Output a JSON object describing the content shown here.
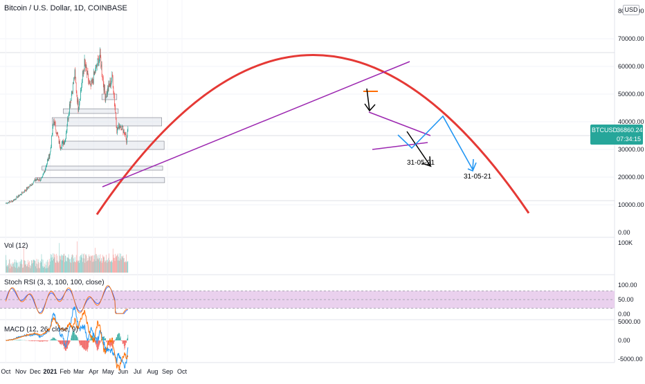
{
  "header": {
    "title": "Bitcoin / U.S. Dollar, 1D, COINBASE",
    "currency": "USD"
  },
  "ticker": {
    "symbol": "BTCUSD",
    "price": "36860.24",
    "countdown": "07:34:15"
  },
  "colors": {
    "up": "#26a69a",
    "down": "#ef5350",
    "arc": "#e53935",
    "trend": "#9c27b0",
    "projection": "#2196f3",
    "rsi_k": "#2962ff",
    "rsi_d": "#ff6d00",
    "rsi_band": "#e1bee7",
    "macd_line": "#2196f3",
    "signal_line": "#ff6d00",
    "axis_text": "#131722"
  },
  "chart_data": [
    {
      "type": "candlestick",
      "name": "price",
      "y_ticks": [
        "0.00",
        "10000.00",
        "20000.00",
        "30000.00",
        "40000.00",
        "50000.00",
        "60000.00",
        "70000.00",
        "80000.00"
      ],
      "ylim": [
        0,
        80000
      ],
      "x_labels": [
        "Oct",
        "Nov",
        "Dec",
        "2021",
        "Feb",
        "Mar",
        "Apr",
        "May",
        "Jun",
        "Jul",
        "Aug",
        "Sep",
        "Oct"
      ],
      "approx_close_path": {
        "dates": [
          "2020-10-01",
          "2020-10-15",
          "2020-11-01",
          "2020-11-15",
          "2020-12-01",
          "2020-12-15",
          "2021-01-01",
          "2021-01-08",
          "2021-01-22",
          "2021-02-01",
          "2021-02-10",
          "2021-02-21",
          "2021-02-28",
          "2021-03-13",
          "2021-03-25",
          "2021-04-14",
          "2021-04-25",
          "2021-05-10",
          "2021-05-19",
          "2021-05-26",
          "2021-06-05",
          "2021-06-08",
          "2021-06-11"
        ],
        "values": [
          10600,
          11400,
          13800,
          16000,
          19000,
          19300,
          29000,
          40500,
          31000,
          33500,
          46000,
          57000,
          45000,
          61000,
          52000,
          64000,
          49000,
          56000,
          37000,
          39000,
          36000,
          33000,
          36860
        ]
      },
      "annotations": [
        {
          "text": "31-05-21",
          "kind": "label"
        },
        {
          "text": "31-05-21",
          "kind": "label"
        }
      ],
      "drawings": [
        "parabolic arc",
        "rising trendline",
        "falling wedge",
        "support/resistance zones",
        "projection arrows"
      ]
    },
    {
      "type": "bar",
      "name": "Vol (12)",
      "label": "Vol (12)",
      "y_ticks": [
        "100K"
      ]
    },
    {
      "type": "line",
      "name": "Stoch RSI",
      "label": "Stoch RSI (3, 3, 100, 100, close)",
      "y_ticks": [
        "100.00",
        "50.00",
        "0.00"
      ],
      "ylim": [
        0,
        100
      ],
      "band": [
        20,
        80
      ]
    },
    {
      "type": "line",
      "name": "MACD",
      "label": "MACD (12, 26, close, 9)",
      "y_ticks": [
        "5000.00",
        "0.00",
        "-5000.00"
      ],
      "ylim": [
        -6000,
        6000
      ]
    }
  ]
}
